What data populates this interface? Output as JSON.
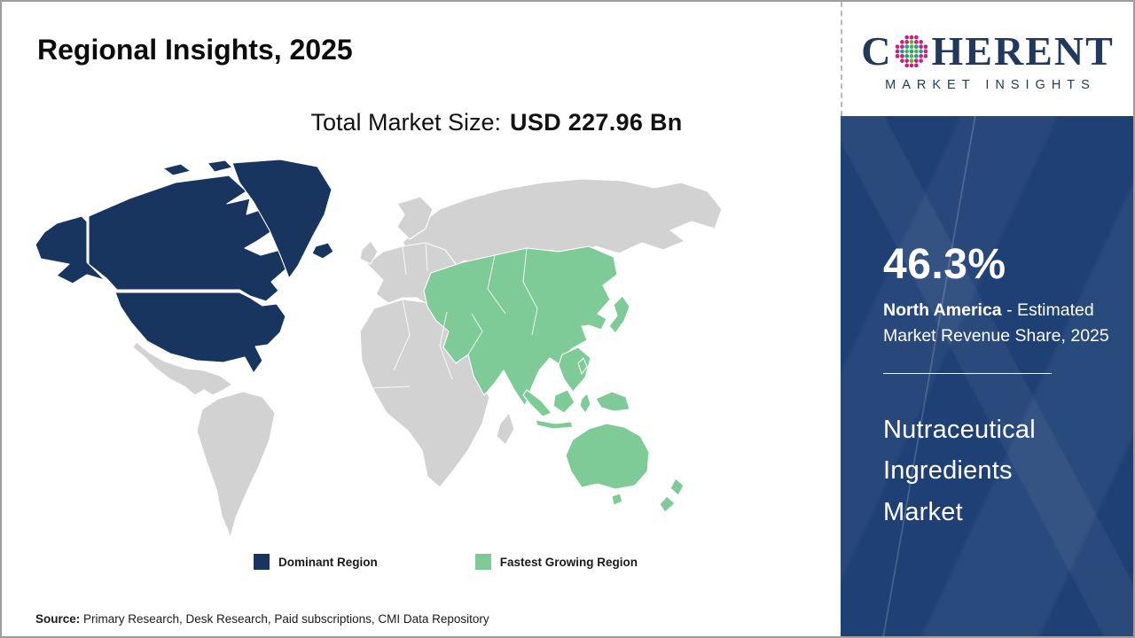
{
  "theme": {
    "dominant_color": "#18355f",
    "growing_color": "#7ecb97",
    "other_region_color": "#d2d2d2",
    "sidebar_color": "#1e4075",
    "logo_navy": "#21395f",
    "logo_teal": "#18a09a",
    "logo_green": "#5fb13e",
    "logo_pink": "#c4257a",
    "border_color": "#9e9e9e"
  },
  "header": {
    "title": "Regional Insights, 2025"
  },
  "logo": {
    "brand_start": "C",
    "brand_end": "HERENT",
    "subtitle": "MARKET INSIGHTS"
  },
  "market": {
    "size_label": "Total Market Size:",
    "size_value": "USD 227.96 Bn"
  },
  "map": {
    "regions": {
      "alaska": "dominant",
      "canada": "dominant",
      "arctic-island-1": "dominant",
      "arctic-island-2": "dominant",
      "usa": "dominant",
      "greenland": "dominant",
      "iceland": "dominant",
      "mexico-central-america": "other",
      "south-america": "other",
      "europe": "other",
      "scandinavia": "other",
      "uk": "other",
      "russia": "other",
      "middle-east": "other",
      "africa": "other",
      "madagascar": "other",
      "asia": "growing",
      "indochina": "growing",
      "japan": "growing",
      "philippines": "growing",
      "sumatra": "growing",
      "borneo": "growing",
      "java": "growing",
      "sulawesi": "growing",
      "new-guinea": "growing",
      "australia": "growing",
      "tasmania": "growing",
      "new-zealand-north": "growing",
      "new-zealand-south": "growing"
    }
  },
  "legend": {
    "dominant_label": "Dominant Region",
    "growing_label": "Fastest Growing Region"
  },
  "sidebar": {
    "share_value": "46.3%",
    "share_region": "North America",
    "share_desc": " - Estimated Market Revenue Share, 2025",
    "market_name": "Nutraceutical Ingredients Market"
  },
  "footer": {
    "source_label": "Source:",
    "source_text": " Primary Research, Desk Research, Paid subscriptions, CMI Data Repository"
  }
}
